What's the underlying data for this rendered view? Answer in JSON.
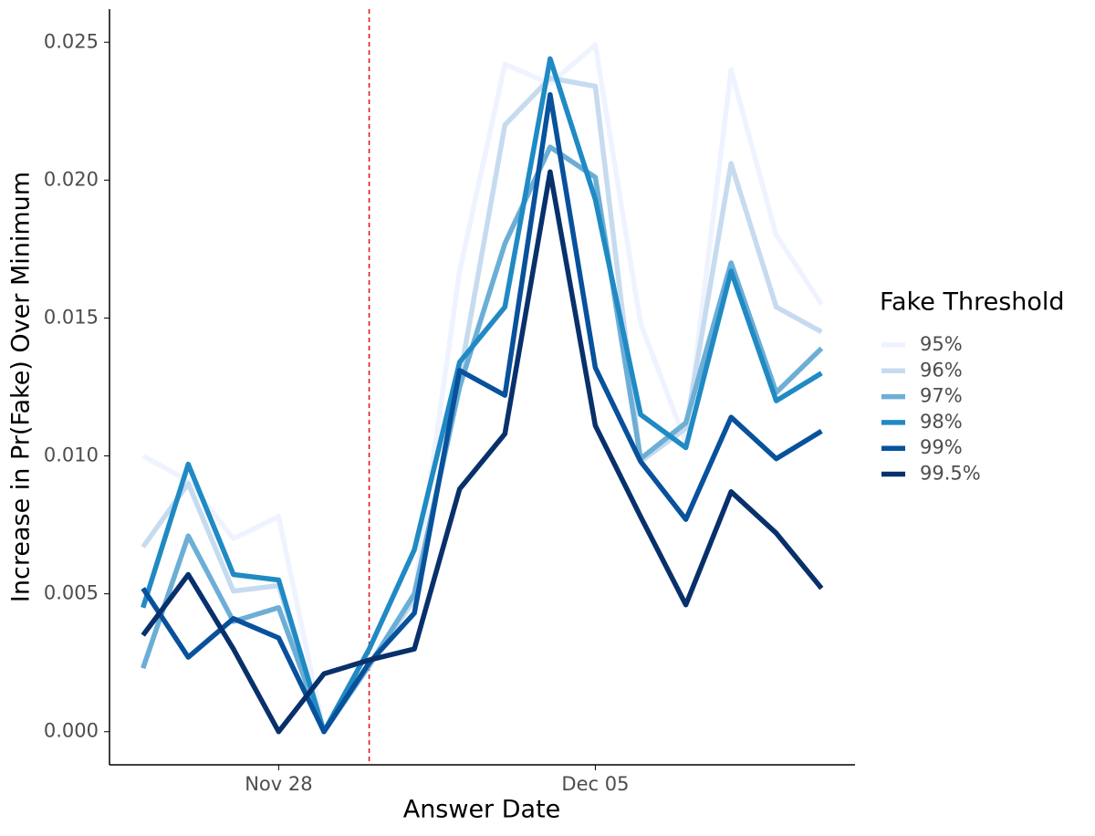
{
  "chart_data": {
    "type": "line",
    "xlabel": "Answer Date",
    "ylabel": "Increase in Pr(Fake) Over Minimum",
    "x": [
      "Nov 25",
      "Nov 26",
      "Nov 27",
      "Nov 28",
      "Nov 29",
      "Nov 30",
      "Dec 01",
      "Dec 02",
      "Dec 03",
      "Dec 04",
      "Dec 05",
      "Dec 06",
      "Dec 07",
      "Dec 08",
      "Dec 09",
      "Dec 10"
    ],
    "xticks": [
      "Nov 28",
      "Dec 05"
    ],
    "vline": {
      "x": "Nov 30",
      "color": "#e41a1c"
    },
    "ylim": [
      -0.0012,
      0.0262
    ],
    "yticks": [
      {
        "value": 0,
        "label": "0.000"
      },
      0.005,
      {
        "value": 0.01,
        "label": "0.010"
      },
      0.015,
      {
        "value": 0.02,
        "label": "0.020"
      },
      0.025
    ],
    "legend_title": "Fake Threshold",
    "legend_position": "right",
    "series": [
      {
        "name": "95%",
        "color": "#eff3ff",
        "values": [
          0.01,
          0.0091,
          0.007,
          0.0078,
          0.0,
          0.0024,
          0.005,
          0.0167,
          0.0242,
          0.0235,
          0.0249,
          0.0148,
          0.0105,
          0.024,
          0.018,
          0.0155
        ]
      },
      {
        "name": "96%",
        "color": "#c6dbef",
        "values": [
          0.0067,
          0.009,
          0.0051,
          0.0053,
          0.0,
          0.0024,
          0.0048,
          0.0128,
          0.022,
          0.0237,
          0.0234,
          0.0098,
          0.011,
          0.0206,
          0.0154,
          0.0145
        ]
      },
      {
        "name": "97%",
        "color": "#6baed6",
        "values": [
          0.0023,
          0.0071,
          0.004,
          0.0045,
          0.0,
          0.0024,
          0.005,
          0.0125,
          0.0177,
          0.0212,
          0.0201,
          0.0099,
          0.0112,
          0.017,
          0.0123,
          0.0139
        ]
      },
      {
        "name": "98%",
        "color": "#1f8ac4",
        "values": [
          0.0045,
          0.0097,
          0.0057,
          0.0055,
          0.0,
          0.003,
          0.0066,
          0.0134,
          0.0154,
          0.0244,
          0.0193,
          0.0115,
          0.0103,
          0.0167,
          0.012,
          0.013
        ]
      },
      {
        "name": "99%",
        "color": "#08519c",
        "values": [
          0.0052,
          0.0027,
          0.0041,
          0.0034,
          0.0,
          0.0025,
          0.0043,
          0.0131,
          0.0122,
          0.0231,
          0.0132,
          0.0098,
          0.0077,
          0.0114,
          0.0099,
          0.0109
        ]
      },
      {
        "name": "99.5%",
        "color": "#08306b",
        "values": [
          0.0035,
          0.0057,
          0.003,
          0.0,
          0.0021,
          0.0026,
          0.003,
          0.0088,
          0.0108,
          0.0203,
          0.0111,
          0.0078,
          0.0046,
          0.0087,
          0.0072,
          0.0052
        ]
      }
    ]
  }
}
